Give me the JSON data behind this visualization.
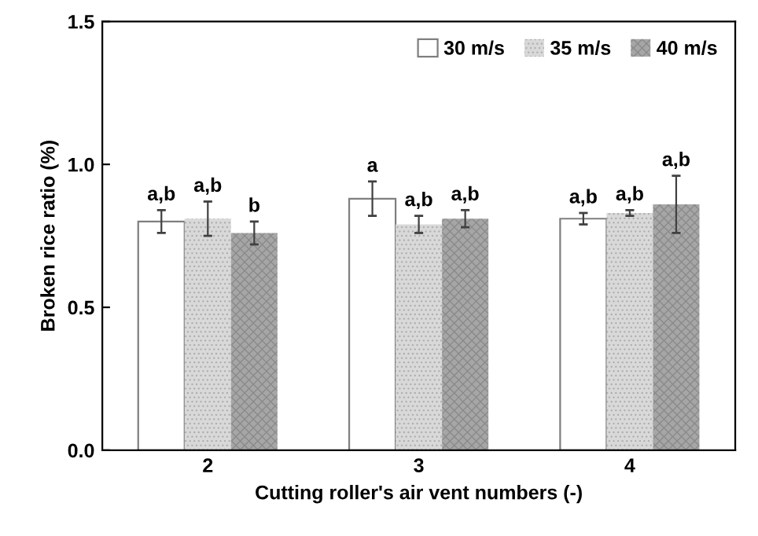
{
  "chart_data": {
    "type": "bar",
    "xlabel": "Cutting roller's air vent numbers (-)",
    "ylabel": "Broken rice ratio (%)",
    "categories": [
      "2",
      "3",
      "4"
    ],
    "series": [
      {
        "name": "30 m/s",
        "color": "#ffffff",
        "values": [
          0.8,
          0.88,
          0.81
        ],
        "errors": [
          0.04,
          0.06,
          0.02
        ],
        "value_labels": [
          "a,b",
          "a",
          "a,b"
        ]
      },
      {
        "name": "35 m/s",
        "color": "#d9d9d9",
        "values": [
          0.81,
          0.79,
          0.83
        ],
        "errors": [
          0.06,
          0.03,
          0.01
        ],
        "value_labels": [
          "a,b",
          "a,b",
          "a,b"
        ]
      },
      {
        "name": "40 m/s",
        "color": "#a6a6a6",
        "values": [
          0.76,
          0.81,
          0.86
        ],
        "errors": [
          0.04,
          0.03,
          0.1
        ],
        "value_labels": [
          "b",
          "a,b",
          "a,b"
        ]
      }
    ],
    "ylim": [
      0,
      1.5
    ],
    "yticks": [
      {
        "value": 0,
        "label": "0.0"
      },
      {
        "value": 0.5,
        "label": "0.5"
      },
      {
        "value": 1,
        "label": "1.0"
      },
      {
        "value": 1.5,
        "label": "1.5"
      }
    ],
    "grid": false,
    "legend": "top right"
  }
}
